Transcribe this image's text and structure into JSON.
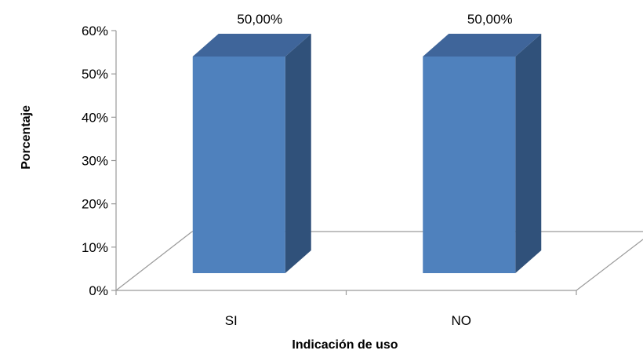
{
  "chart_data": {
    "type": "bar",
    "style": "3d-column",
    "categories": [
      "SI",
      "NO"
    ],
    "values": [
      50,
      50
    ],
    "data_labels": [
      "50,00%",
      "50,00%"
    ],
    "xlabel": "Indicación de uso",
    "ylabel": "Porcentaje",
    "ylim": [
      0,
      60
    ],
    "yticks": [
      0,
      10,
      20,
      30,
      40,
      50,
      60
    ],
    "ytick_labels": [
      "0%",
      "10%",
      "20%",
      "30%",
      "40%",
      "50%",
      "60%"
    ],
    "grid": false,
    "legend": "none",
    "colors": {
      "bar_front": "#4F81BD",
      "bar_side": "#30517A",
      "bar_top": "#3F659A",
      "axis": "#9A9A9A"
    }
  }
}
